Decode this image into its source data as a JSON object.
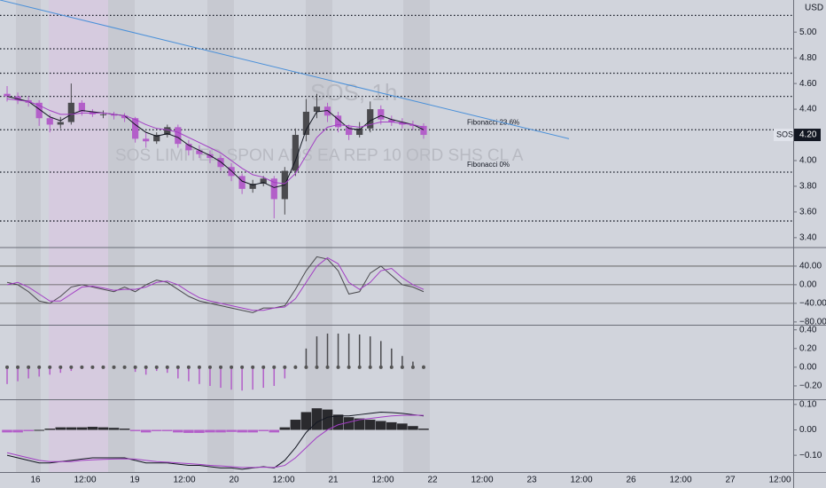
{
  "chart_data": [
    {
      "type": "candlestick",
      "title": "SOS, 1h",
      "subtitle": "SOS LIMITED SPON ADS EA REP 10 ORD SHS CL A",
      "currency": "USD",
      "up_color": "#4a4a4e",
      "down_color": "#b35fc9",
      "open": [
        4.52,
        4.5,
        4.47,
        4.45,
        4.33,
        4.28,
        4.3,
        4.45,
        4.38,
        4.36,
        4.36,
        4.35,
        4.33,
        4.17,
        4.15,
        4.2,
        4.26,
        4.13,
        4.08,
        4.05,
        4.02,
        3.95,
        3.88,
        3.78,
        3.82,
        3.86,
        3.7,
        3.92,
        4.2,
        4.38,
        4.42,
        4.35,
        4.26,
        4.2,
        4.25,
        4.4,
        4.32,
        4.3,
        4.28,
        4.27
      ],
      "high": [
        4.58,
        4.53,
        4.5,
        4.47,
        4.36,
        4.34,
        4.6,
        4.47,
        4.4,
        4.39,
        4.38,
        4.37,
        4.34,
        4.22,
        4.22,
        4.28,
        4.28,
        4.16,
        4.12,
        4.08,
        4.04,
        3.98,
        3.9,
        3.85,
        3.88,
        3.88,
        3.95,
        4.25,
        4.48,
        4.52,
        4.45,
        4.38,
        4.28,
        4.3,
        4.46,
        4.43,
        4.35,
        4.33,
        4.31,
        4.29
      ],
      "low": [
        4.46,
        4.44,
        4.42,
        4.27,
        4.22,
        4.25,
        4.28,
        4.35,
        4.34,
        4.33,
        4.32,
        4.3,
        4.14,
        4.1,
        4.13,
        4.18,
        4.1,
        4.04,
        4.02,
        3.98,
        3.92,
        3.84,
        3.74,
        3.75,
        3.8,
        3.55,
        3.58,
        3.88,
        4.15,
        4.33,
        4.3,
        4.22,
        4.16,
        4.18,
        4.22,
        4.28,
        4.27,
        4.25,
        4.24,
        4.17
      ],
      "close": [
        4.5,
        4.47,
        4.45,
        4.33,
        4.28,
        4.3,
        4.45,
        4.38,
        4.36,
        4.36,
        4.35,
        4.33,
        4.17,
        4.15,
        4.2,
        4.26,
        4.13,
        4.08,
        4.05,
        4.02,
        3.95,
        3.88,
        3.78,
        3.82,
        3.86,
        3.7,
        3.92,
        4.2,
        4.38,
        4.42,
        4.35,
        4.26,
        4.2,
        4.25,
        4.4,
        4.32,
        4.3,
        4.28,
        4.27,
        4.2
      ],
      "series": [
        {
          "color": "#131722",
          "values": [
            4.5,
            4.48,
            4.46,
            4.4,
            4.34,
            4.31,
            4.36,
            4.39,
            4.38,
            4.37,
            4.36,
            4.35,
            4.28,
            4.22,
            4.19,
            4.21,
            4.18,
            4.12,
            4.08,
            4.04,
            3.99,
            3.92,
            3.84,
            3.81,
            3.83,
            3.79,
            3.81,
            4.0,
            4.24,
            4.38,
            4.39,
            4.32,
            4.25,
            4.24,
            4.31,
            4.35,
            4.32,
            4.3,
            4.28,
            4.24
          ]
        },
        {
          "color": "#a23ec4",
          "values": [
            4.48,
            4.47,
            4.46,
            4.43,
            4.39,
            4.36,
            4.36,
            4.37,
            4.37,
            4.37,
            4.36,
            4.35,
            4.32,
            4.28,
            4.25,
            4.24,
            4.22,
            4.18,
            4.14,
            4.1,
            4.06,
            4.0,
            3.94,
            3.89,
            3.87,
            3.83,
            3.82,
            3.9,
            4.04,
            4.18,
            4.26,
            4.28,
            4.27,
            4.26,
            4.28,
            4.3,
            4.3,
            4.29,
            4.28,
            4.26
          ]
        }
      ],
      "levels": [
        {
          "value": 5.13
        },
        {
          "value": 4.87
        },
        {
          "value": 4.68
        },
        {
          "value": 4.5
        },
        {
          "value": 4.24,
          "label": "Fibonacci 23.6%"
        },
        {
          "value": 3.91,
          "label": "Fibonacci 0%"
        },
        {
          "value": 3.53
        }
      ],
      "trendline": {
        "start": 5.25,
        "end": 4.17,
        "color": "#4a90d9"
      },
      "symbol": "SOS",
      "last_price": {
        "value": 4.2,
        "label": "4.20"
      },
      "ylim": [
        3.33,
        5.25
      ],
      "yticks": [
        {
          "value": 3.4,
          "label": "3.40"
        },
        {
          "value": 3.6,
          "label": "3.60"
        },
        {
          "value": 3.8,
          "label": "3.80"
        },
        {
          "value": 4.0,
          "label": "4.00"
        },
        {
          "value": 4.2,
          "label": "4.20"
        },
        {
          "value": 4.4,
          "label": "4.40"
        },
        {
          "value": 4.6,
          "label": "4.60"
        },
        {
          "value": 4.8,
          "label": "4.80"
        },
        {
          "value": 5.0,
          "label": "5.00"
        }
      ]
    },
    {
      "type": "line",
      "series": [
        {
          "color": "#4a4a4e",
          "values": [
            5,
            0,
            -15,
            -35,
            -40,
            -25,
            -5,
            0,
            -5,
            -10,
            -15,
            -5,
            -15,
            0,
            10,
            5,
            -10,
            -25,
            -35,
            -40,
            -45,
            -50,
            -55,
            -60,
            -50,
            -50,
            -45,
            -10,
            30,
            60,
            55,
            30,
            -20,
            -15,
            25,
            40,
            20,
            0,
            -5,
            -15
          ]
        },
        {
          "color": "#a23ec4",
          "values": [
            0,
            5,
            -5,
            -20,
            -35,
            -35,
            -20,
            -5,
            -3,
            -7,
            -12,
            -10,
            -10,
            -5,
            5,
            8,
            0,
            -15,
            -28,
            -35,
            -40,
            -45,
            -50,
            -55,
            -55,
            -50,
            -48,
            -30,
            5,
            40,
            58,
            45,
            5,
            -10,
            5,
            30,
            35,
            15,
            0,
            -10
          ]
        }
      ],
      "levels": [
        {
          "value": 40
        },
        {
          "value": 0
        },
        {
          "value": -40
        }
      ],
      "ylim": [
        -86,
        78
      ],
      "yticks": [
        {
          "value": 40,
          "label": "40.00"
        },
        {
          "value": 0,
          "label": "0.00"
        },
        {
          "value": -40,
          "label": "−40.00"
        },
        {
          "value": -80,
          "label": "−80.00"
        }
      ]
    },
    {
      "type": "lollipop",
      "up_color": "#4a4a4e",
      "down_color": "#b35fc9",
      "values": [
        -0.18,
        -0.15,
        -0.12,
        -0.1,
        -0.08,
        -0.06,
        -0.04,
        -0.02,
        0,
        0,
        0.01,
        0,
        -0.05,
        -0.08,
        -0.04,
        -0.06,
        -0.12,
        -0.15,
        -0.18,
        -0.2,
        -0.22,
        -0.24,
        -0.25,
        -0.24,
        -0.22,
        -0.2,
        -0.12,
        0.02,
        0.2,
        0.33,
        0.36,
        0.36,
        0.36,
        0.35,
        0.33,
        0.28,
        0.2,
        0.12,
        0.06,
        0.02
      ],
      "ylim": [
        -0.343,
        0.445
      ],
      "yticks": [
        {
          "value": 0.4,
          "label": "0.40"
        },
        {
          "value": 0.2,
          "label": "0.20"
        },
        {
          "value": 0,
          "label": "0.00"
        },
        {
          "value": -0.2,
          "label": "−0.20"
        }
      ]
    },
    {
      "type": "macd",
      "up_color": "#2a2a2e",
      "down_color": "#b35fc9",
      "values": [
        -0.01,
        -0.01,
        -0.005,
        0,
        0.005,
        0.01,
        0.01,
        0.01,
        0.012,
        0.01,
        0.008,
        0.005,
        -0.005,
        -0.01,
        -0.005,
        -0.005,
        -0.01,
        -0.012,
        -0.012,
        -0.01,
        -0.01,
        -0.008,
        -0.01,
        -0.01,
        -0.005,
        -0.01,
        0.01,
        0.04,
        0.07,
        0.085,
        0.08,
        0.06,
        0.05,
        0.045,
        0.04,
        0.035,
        0.03,
        0.025,
        0.015,
        0.005
      ],
      "series": [
        {
          "color": "#131722",
          "values": [
            -0.1,
            -0.11,
            -0.12,
            -0.13,
            -0.13,
            -0.125,
            -0.12,
            -0.115,
            -0.11,
            -0.11,
            -0.11,
            -0.11,
            -0.12,
            -0.13,
            -0.13,
            -0.13,
            -0.135,
            -0.14,
            -0.14,
            -0.145,
            -0.15,
            -0.15,
            -0.155,
            -0.15,
            -0.145,
            -0.15,
            -0.12,
            -0.07,
            -0.01,
            0.03,
            0.05,
            0.055,
            0.055,
            0.06,
            0.065,
            0.07,
            0.068,
            0.065,
            0.06,
            0.055
          ]
        },
        {
          "color": "#a23ec4",
          "values": [
            -0.09,
            -0.1,
            -0.11,
            -0.12,
            -0.125,
            -0.125,
            -0.125,
            -0.12,
            -0.118,
            -0.116,
            -0.115,
            -0.114,
            -0.115,
            -0.12,
            -0.125,
            -0.127,
            -0.13,
            -0.133,
            -0.136,
            -0.14,
            -0.142,
            -0.145,
            -0.148,
            -0.148,
            -0.147,
            -0.148,
            -0.14,
            -0.11,
            -0.07,
            -0.03,
            0.0,
            0.02,
            0.03,
            0.04,
            0.045,
            0.05,
            0.055,
            0.057,
            0.058,
            0.057
          ]
        }
      ],
      "ylim": [
        -0.166,
        0.117
      ],
      "yticks": [
        {
          "value": 0.1,
          "label": "0.10"
        },
        {
          "value": 0,
          "label": "0.00"
        },
        {
          "value": -0.1,
          "label": "−0.10"
        }
      ],
      "x_axis_labels": [
        "16",
        "12:00",
        "19",
        "12:00",
        "20",
        "12:00",
        "21",
        "12:00",
        "22",
        "12:00",
        "23",
        "12:00",
        "26",
        "12:00",
        "27",
        "12:00"
      ]
    }
  ]
}
